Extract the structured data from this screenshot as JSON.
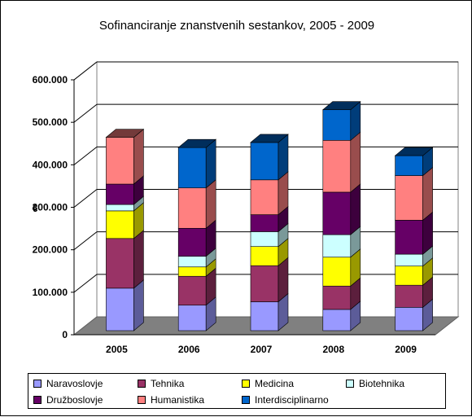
{
  "chart_data": {
    "type": "bar",
    "stacked": true,
    "title": "Sofinanciranje znanstvenih sestankov, 2005 - 2009",
    "ylabel": "€",
    "xlabel": "",
    "ylim": [
      0,
      600000
    ],
    "yticks": [
      "0",
      "100.000",
      "200.000",
      "300.000",
      "400.000",
      "500.000",
      "600.000"
    ],
    "categories": [
      "2005",
      "2006",
      "2007",
      "2008",
      "2009"
    ],
    "grid": true,
    "legend_position": "bottom",
    "series": [
      {
        "name": "Naravoslovje",
        "color": "#9999ff",
        "values": [
          100000,
          60000,
          68000,
          50000,
          55000
        ]
      },
      {
        "name": "Tehnika",
        "color": "#993366",
        "values": [
          117000,
          68000,
          85000,
          55000,
          52000
        ]
      },
      {
        "name": "Medicina",
        "color": "#ffff00",
        "values": [
          65000,
          22000,
          45000,
          68000,
          45000
        ]
      },
      {
        "name": "Biotehnika",
        "color": "#ccffff",
        "values": [
          15000,
          25000,
          35000,
          53000,
          28000
        ]
      },
      {
        "name": "Družboslovje",
        "color": "#660066",
        "values": [
          48000,
          66000,
          40000,
          100000,
          80000
        ]
      },
      {
        "name": "Humanistika",
        "color": "#ff8080",
        "values": [
          110000,
          95000,
          82000,
          122000,
          105000
        ]
      },
      {
        "name": "Interdisciplinarno",
        "color": "#0066cc",
        "values": [
          0,
          95000,
          88000,
          72000,
          47000
        ]
      }
    ]
  }
}
